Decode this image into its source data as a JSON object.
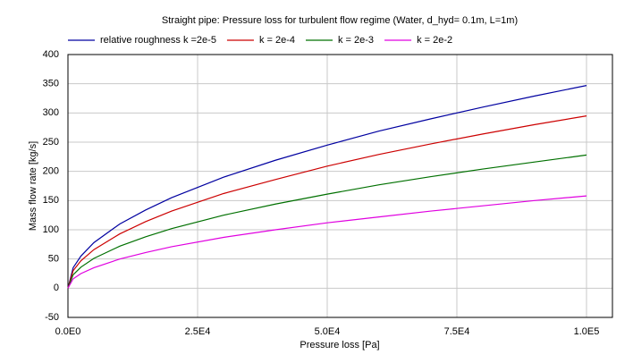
{
  "chart_data": {
    "type": "line",
    "title": "Straight pipe: Pressure loss for turbulent flow regime (Water, d_hyd= 0.1m, L=1m)",
    "x_label": "Pressure loss [Pa]",
    "y_label": "Mass flow rate [kg/s]",
    "x": [
      0,
      1000,
      2500,
      5000,
      10000,
      15000,
      20000,
      30000,
      40000,
      50000,
      60000,
      70000,
      80000,
      90000,
      100000
    ],
    "series": [
      {
        "name": "relative roughness k =2e-5",
        "color": "#0000a0",
        "values": [
          0,
          35,
          55,
          78,
          110,
          134,
          155,
          190,
          219,
          245,
          269,
          290,
          310,
          329,
          347
        ]
      },
      {
        "name": "k = 2e-4",
        "color": "#cc0000",
        "values": [
          0,
          30,
          47,
          66,
          93,
          114,
          132,
          162,
          186,
          209,
          229,
          247,
          264,
          280,
          295
        ]
      },
      {
        "name": "k = 2e-3",
        "color": "#007000",
        "values": [
          0,
          23,
          36,
          51,
          72,
          88,
          102,
          125,
          144,
          161,
          177,
          191,
          204,
          216,
          228
        ]
      },
      {
        "name": "k = 2e-2",
        "color": "#e000e0",
        "values": [
          0,
          16,
          25,
          35,
          50,
          61,
          71,
          87,
          100,
          112,
          122,
          132,
          141,
          150,
          158
        ]
      }
    ],
    "xlim": [
      0,
      105000
    ],
    "ylim": [
      -50,
      400
    ],
    "xticks": [
      {
        "value": 0,
        "label": "0.0E0"
      },
      {
        "value": 25000,
        "label": "2.5E4"
      },
      {
        "value": 50000,
        "label": "5.0E4"
      },
      {
        "value": 75000,
        "label": "7.5E4"
      },
      {
        "value": 100000,
        "label": "1.0E5"
      }
    ],
    "yticks": [
      -50,
      0,
      50,
      100,
      150,
      200,
      250,
      300,
      350,
      400
    ],
    "grid": true,
    "legend": "top"
  }
}
